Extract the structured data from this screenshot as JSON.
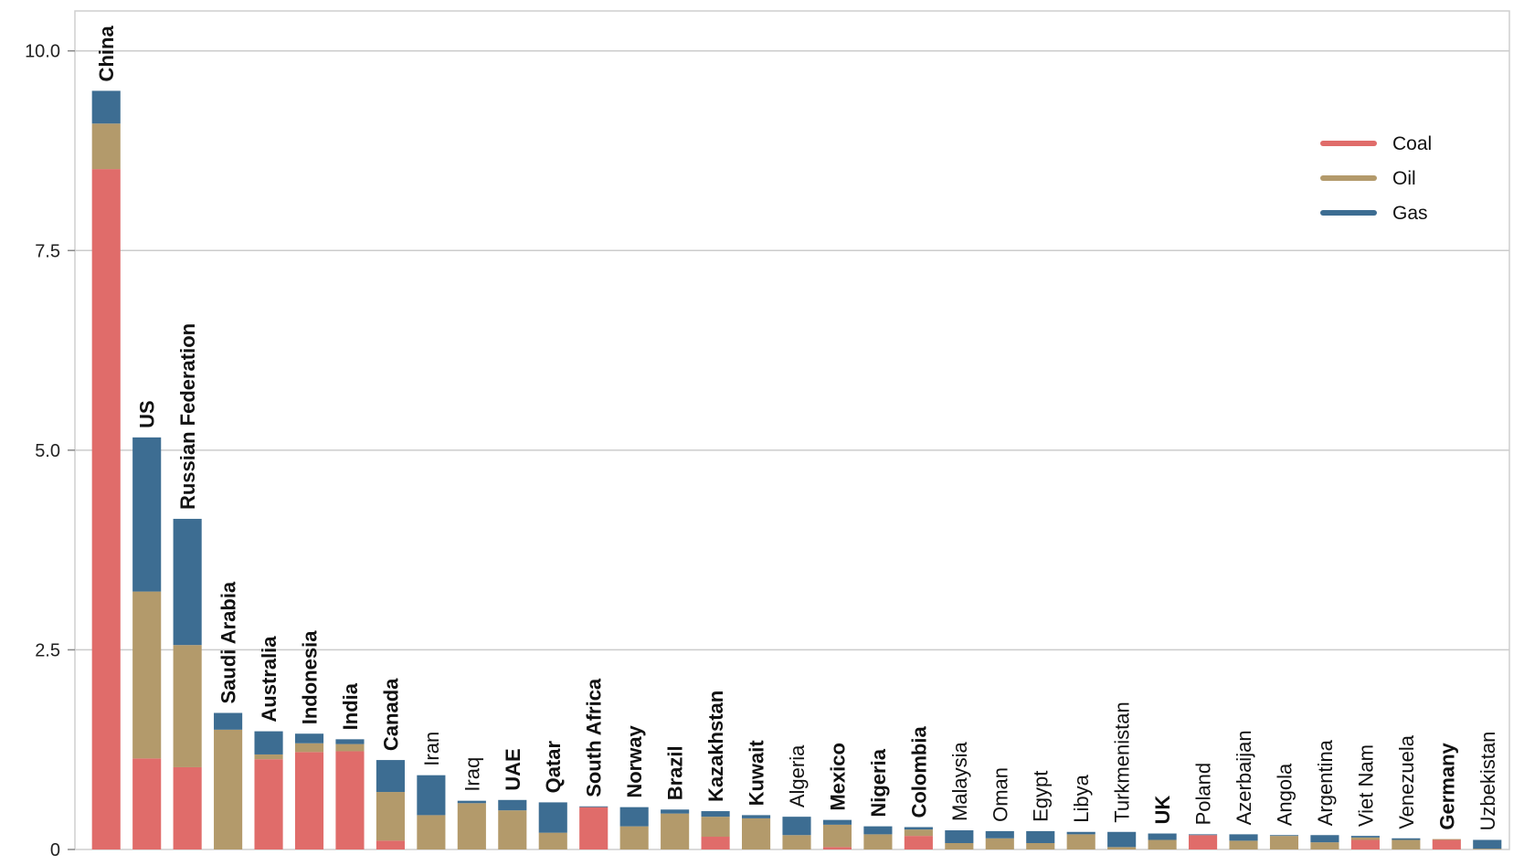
{
  "chart_data": {
    "type": "bar",
    "stacked": true,
    "ylim": [
      0,
      10.5
    ],
    "yticks": [
      0,
      2.5,
      5.0,
      7.5,
      10.0
    ],
    "ytick_labels": [
      "0",
      "2.5",
      "5.0",
      "7.5",
      "10.0"
    ],
    "grid": "horizontal",
    "legend_position": "top-right",
    "colors": {
      "Coal": "#e06c6a",
      "Oil": "#b39a6b",
      "Gas": "#3d6d92"
    },
    "categories": [
      "China",
      "US",
      "Russian Federation",
      "Saudi Arabia",
      "Australia",
      "Indonesia",
      "India",
      "Canada",
      "Iran",
      "Iraq",
      "UAE",
      "Qatar",
      "South Africa",
      "Norway",
      "Brazil",
      "Kazakhstan",
      "Kuwait",
      "Algeria",
      "Mexico",
      "Nigeria",
      "Colombia",
      "Malaysia",
      "Oman",
      "Egypt",
      "Libya",
      "Turkmenistan",
      "UK",
      "Poland",
      "Azerbaijan",
      "Angola",
      "Argentina",
      "Viet Nam",
      "Venezuela",
      "Germany",
      "Uzbekistan"
    ],
    "bold_categories": [
      "China",
      "US",
      "Russian Federation",
      "Saudi Arabia",
      "Australia",
      "Indonesia",
      "India",
      "Canada",
      "UAE",
      "Qatar",
      "South Africa",
      "Norway",
      "Brazil",
      "Kazakhstan",
      "Kuwait",
      "Mexico",
      "Nigeria",
      "Colombia",
      "UK",
      "Germany"
    ],
    "series": [
      {
        "name": "Coal",
        "values": [
          8.52,
          1.14,
          1.03,
          0,
          1.13,
          1.22,
          1.23,
          0.11,
          0,
          0,
          0,
          0,
          0.53,
          0,
          0,
          0.16,
          0,
          0,
          0.03,
          0,
          0.17,
          0,
          0,
          0,
          0,
          0,
          0,
          0.18,
          0,
          0,
          0,
          0.12,
          0,
          0.12,
          0
        ]
      },
      {
        "name": "Oil",
        "values": [
          0.57,
          2.09,
          1.53,
          1.5,
          0.06,
          0.11,
          0.09,
          0.61,
          0.43,
          0.58,
          0.49,
          0.21,
          0,
          0.29,
          0.45,
          0.25,
          0.39,
          0.18,
          0.28,
          0.19,
          0.08,
          0.08,
          0.14,
          0.08,
          0.19,
          0.03,
          0.12,
          0,
          0.11,
          0.17,
          0.09,
          0.03,
          0.12,
          0.01,
          0.01
        ]
      },
      {
        "name": "Gas",
        "values": [
          0.41,
          1.93,
          1.58,
          0.21,
          0.29,
          0.12,
          0.06,
          0.4,
          0.5,
          0.03,
          0.13,
          0.38,
          0.01,
          0.24,
          0.05,
          0.07,
          0.04,
          0.23,
          0.06,
          0.1,
          0.03,
          0.16,
          0.09,
          0.15,
          0.03,
          0.19,
          0.08,
          0.01,
          0.08,
          0.01,
          0.09,
          0.02,
          0.02,
          0,
          0.11
        ]
      }
    ],
    "legend": [
      "Coal",
      "Oil",
      "Gas"
    ]
  }
}
